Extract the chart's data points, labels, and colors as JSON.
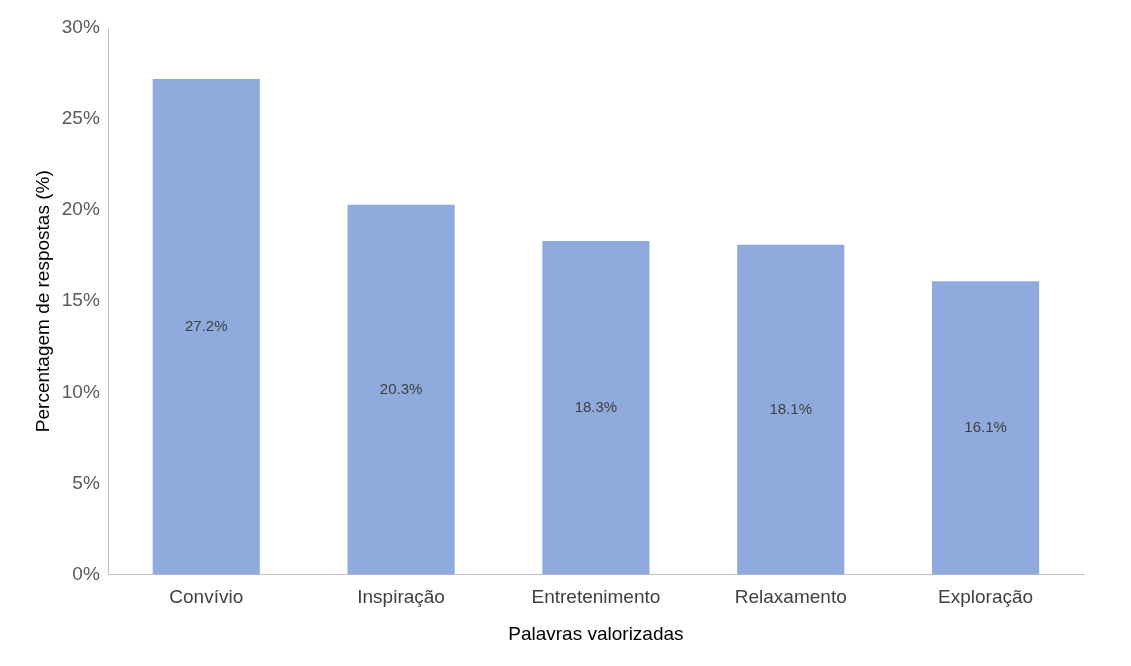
{
  "chart_data": {
    "type": "bar",
    "xlabel": "Palavras valorizadas",
    "ylabel": "Percentagem de respostas (%)",
    "categories": [
      "Convívio",
      "Inspiração",
      "Entretenimento",
      "Relaxamento",
      "Exploração"
    ],
    "values": [
      27.2,
      20.3,
      18.3,
      18.1,
      16.1
    ],
    "value_labels": [
      "27.2%",
      "20.3%",
      "18.3%",
      "18.1%",
      "16.1%"
    ],
    "color": "#8faadc",
    "ylim": [
      0,
      30
    ],
    "yticks": [
      {
        "value": 0,
        "label": "0%"
      },
      {
        "value": 5,
        "label": "5%"
      },
      {
        "value": 10,
        "label": "10%"
      },
      {
        "value": 15,
        "label": "15%"
      },
      {
        "value": 20,
        "label": "20%"
      },
      {
        "value": 25,
        "label": "25%"
      },
      {
        "value": 30,
        "label": "30%"
      }
    ],
    "grid": false,
    "legend": false
  }
}
